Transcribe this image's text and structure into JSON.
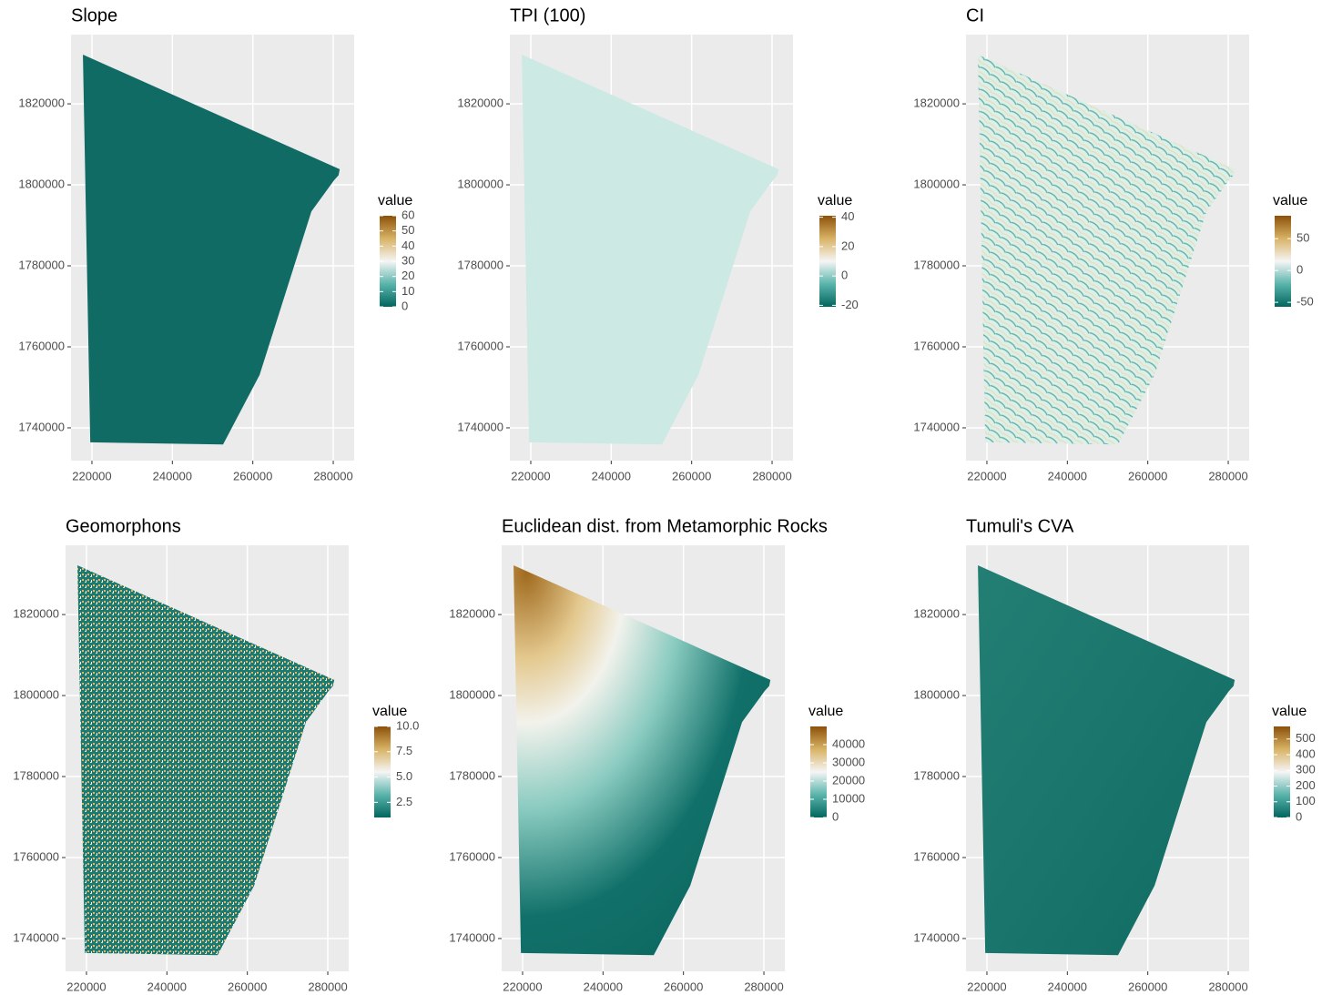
{
  "chart_data": [
    {
      "type": "raster",
      "title": "Slope",
      "xlim": [
        214800,
        285200
      ],
      "ylim": [
        1731900,
        1837100
      ],
      "xticks": [
        220000,
        240000,
        260000,
        280000
      ],
      "yticks": [
        1740000,
        1760000,
        1780000,
        1800000,
        1820000
      ],
      "legend_title": "value",
      "legend_lim": [
        0,
        60
      ],
      "legend_ticks": [
        0,
        10,
        20,
        30,
        40,
        50,
        60
      ]
    },
    {
      "type": "raster",
      "title": "TPI (100)",
      "xlim": [
        214800,
        285200
      ],
      "ylim": [
        1731900,
        1837100
      ],
      "xticks": [
        220000,
        240000,
        260000,
        280000
      ],
      "yticks": [
        1740000,
        1760000,
        1780000,
        1800000,
        1820000
      ],
      "legend_title": "value",
      "legend_lim": [
        -21,
        41
      ],
      "legend_ticks": [
        -20,
        0,
        20,
        40
      ]
    },
    {
      "type": "raster",
      "title": "CI",
      "xlim": [
        214800,
        285200
      ],
      "ylim": [
        1731900,
        1837100
      ],
      "xticks": [
        220000,
        240000,
        260000,
        280000
      ],
      "yticks": [
        1740000,
        1760000,
        1780000,
        1800000,
        1820000
      ],
      "legend_title": "value",
      "legend_lim": [
        -57,
        86
      ],
      "legend_ticks": [
        -50,
        0,
        50
      ]
    },
    {
      "type": "raster",
      "title": "Geomorphons",
      "xlim": [
        214800,
        285200
      ],
      "ylim": [
        1731900,
        1837100
      ],
      "xticks": [
        220000,
        240000,
        260000,
        280000
      ],
      "yticks": [
        1740000,
        1760000,
        1780000,
        1800000,
        1820000
      ],
      "legend_title": "value",
      "legend_lim": [
        1,
        10
      ],
      "legend_ticks": [
        {
          "value": 2.5,
          "label": "2.5"
        },
        {
          "value": 5,
          "label": "5.0"
        },
        {
          "value": 7.5,
          "label": "7.5"
        },
        {
          "value": 10,
          "label": "10.0"
        }
      ]
    },
    {
      "type": "raster",
      "title": "Euclidean dist. from Metamorphic Rocks",
      "xlim": [
        214800,
        285200
      ],
      "ylim": [
        1731900,
        1837100
      ],
      "xticks": [
        220000,
        240000,
        260000,
        280000
      ],
      "yticks": [
        1740000,
        1760000,
        1780000,
        1800000,
        1820000
      ],
      "legend_title": "value",
      "legend_lim": [
        0,
        50000
      ],
      "legend_ticks": [
        0,
        10000,
        20000,
        30000,
        40000
      ]
    },
    {
      "type": "raster",
      "title": "Tumuli's CVA",
      "xlim": [
        214800,
        285200
      ],
      "ylim": [
        1731900,
        1837100
      ],
      "xticks": [
        220000,
        240000,
        260000,
        280000
      ],
      "yticks": [
        1740000,
        1760000,
        1780000,
        1800000,
        1820000
      ],
      "legend_title": "value",
      "legend_lim": [
        0,
        580
      ],
      "legend_ticks": [
        0,
        100,
        200,
        300,
        400,
        500
      ]
    }
  ]
}
